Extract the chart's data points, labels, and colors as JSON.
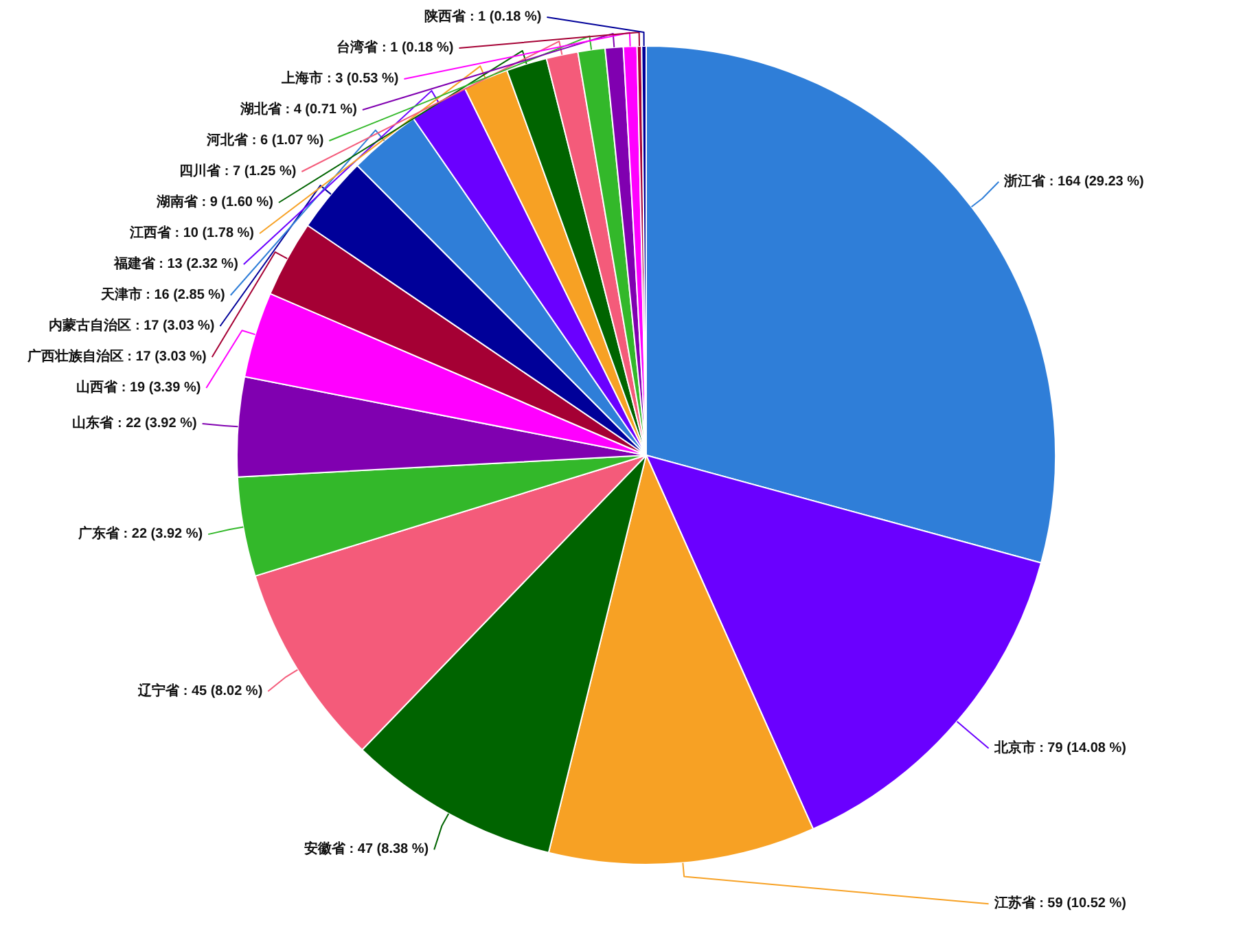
{
  "chart_data": {
    "type": "pie",
    "categories": [
      "浙江省",
      "北京市",
      "江苏省",
      "安徽省",
      "辽宁省",
      "广东省",
      "山东省",
      "山西省",
      "广西壮族自治区",
      "内蒙古自治区",
      "天津市",
      "福建省",
      "江西省",
      "湖南省",
      "四川省",
      "河北省",
      "湖北省",
      "上海市",
      "台湾省",
      "陕西省"
    ],
    "values": [
      164,
      79,
      59,
      47,
      45,
      22,
      22,
      19,
      17,
      17,
      16,
      13,
      10,
      9,
      7,
      6,
      4,
      3,
      1,
      1
    ],
    "colors": [
      "#2f7ed8",
      "#6a00ff",
      "#f7a124",
      "#006400",
      "#f45b7a",
      "#33b82a",
      "#8000b0",
      "#ff00ff",
      "#a50034",
      "#000099",
      "#2f7ed8",
      "#6a00ff",
      "#f7a124",
      "#006400",
      "#f45b7a",
      "#33b82a",
      "#8000b0",
      "#ff00ff",
      "#a50034",
      "#000099"
    ],
    "value_labels": [
      ": 164 (29.23 %)",
      ": 79 (14.08 %)",
      ": 59 (10.52 %)",
      ": 47 (8.38 %)",
      ": 45 (8.02 %)",
      ": 22 (3.92 %)",
      ": 22 (3.92 %)",
      ": 19 (3.39 %)",
      ": 17 (3.03 %)",
      ": 17 (3.03 %)",
      ": 16 (2.85 %)",
      ": 13 (2.32 %)",
      ": 10 (1.78 %)",
      ": 9 (1.60 %)",
      ": 7 (1.25 %)",
      ": 6 (1.07 %)",
      ": 4 (0.71 %)",
      ": 3 (0.53 %)",
      ": 1 (0.18 %)",
      ": 1 (0.18 %)"
    ]
  }
}
